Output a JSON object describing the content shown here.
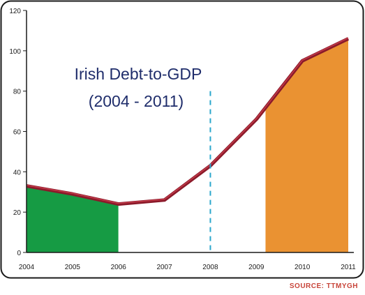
{
  "chart_data": {
    "type": "area",
    "title_line1": "Irish Debt-to-GDP",
    "title_line2": "(2004 - 2011)",
    "x": [
      "2004",
      "2005",
      "2006",
      "2007",
      "2008",
      "2009",
      "2010",
      "2011"
    ],
    "y": [
      33,
      29,
      24,
      26,
      43,
      66,
      95,
      106
    ],
    "ylim": [
      0,
      120
    ],
    "yticks": [
      "0",
      "20",
      "40",
      "60",
      "80",
      "100",
      "120"
    ],
    "marker_year": "2008",
    "flag_bands": [
      {
        "from": "2004",
        "to": "2006",
        "color": "#169b44"
      },
      {
        "from": "2006",
        "to": "2009.2",
        "color": "#ffffff"
      },
      {
        "from": "2009.2",
        "to": "2011",
        "color": "#ea9232"
      }
    ],
    "colors": {
      "line": "#8b1a2a",
      "line_highlight": "#c33b4a",
      "frame": "#1a1a1a",
      "marker": "#2aa7cc"
    }
  },
  "source": "SOURCE: TTMYGH"
}
